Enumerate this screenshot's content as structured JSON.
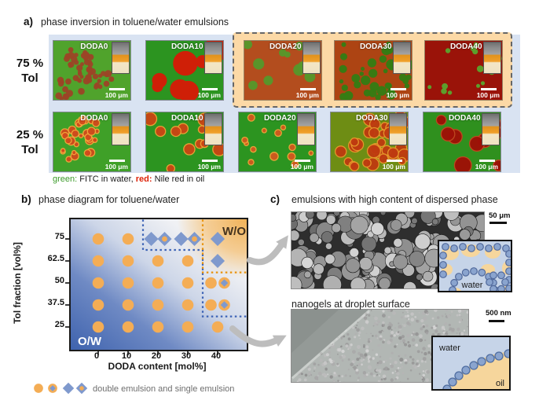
{
  "figure": {
    "panel_a": {
      "label": "a)",
      "title": "phase inversion in toluene/water emulsions",
      "rows": [
        {
          "label_percent": "75 %",
          "label_unit": "Tol"
        },
        {
          "label_percent": "25 %",
          "label_unit": "Tol"
        }
      ],
      "scale_label": "100 μm",
      "highlighted_labels": [
        "DODA20",
        "DODA30",
        "DODA40"
      ],
      "caption": {
        "green_key": "green:",
        "green_desc": " FITC in water, ",
        "red_key": "red:",
        "red_desc": " Nile red in oil"
      },
      "cells": [
        {
          "row": "75",
          "label": "DODA0",
          "boxed": false,
          "bg": "#50a32c",
          "droplets": {
            "mode": "clusters",
            "clusters": [
              [
                32,
                26
              ],
              [
                58,
                50
              ],
              [
                22,
                58
              ]
            ],
            "spread": 16,
            "count": 60,
            "rmin": 2.5,
            "rmax": 4.5,
            "color": "#9c4526",
            "opacity": 0.95,
            "seed": 1
          }
        },
        {
          "row": "75",
          "label": "DODA10",
          "boxed": false,
          "bg": "#2c9420",
          "droplets": {
            "mode": "scatter",
            "count": 7,
            "rmin": 4,
            "rmax": 19,
            "color": "#cf1f07",
            "opacity": 1,
            "seed": 2
          }
        },
        {
          "row": "75",
          "label": "DODA20",
          "boxed": true,
          "bg": "#b34d1e",
          "droplets": {
            "mode": "scatter",
            "count": 13,
            "rmin": 3.5,
            "rmax": 8.5,
            "color": "#55982b",
            "opacity": 0.95,
            "seed": 3
          }
        },
        {
          "row": "75",
          "label": "DODA30",
          "boxed": true,
          "bg": "#ad4413",
          "droplets": {
            "mode": "scatter",
            "count": 42,
            "rmin": 2.5,
            "rmax": 6.5,
            "color": "#337d13",
            "opacity": 0.95,
            "seed": 4
          }
        },
        {
          "row": "75",
          "label": "DODA40",
          "boxed": true,
          "bg": "#9a1309",
          "droplets": {
            "mode": "scatter",
            "count": 15,
            "rmin": 2,
            "rmax": 4.5,
            "color": "#5aa52e",
            "opacity": 0.95,
            "seed": 5
          }
        },
        {
          "row": "25",
          "label": "DODA0",
          "boxed": false,
          "bg": "#3fa028",
          "droplets": {
            "mode": "clusters",
            "clusters": [
              [
                40,
                24
              ],
              [
                30,
                44
              ]
            ],
            "spread": 18,
            "count": 30,
            "rmin": 2.5,
            "rmax": 5.5,
            "color": "#d2491c",
            "stroke": "#f2a93c",
            "opacity": 0.95,
            "seed": 6
          }
        },
        {
          "row": "25",
          "label": "DODA10",
          "boxed": false,
          "bg": "#2c9420",
          "droplets": {
            "mode": "scatter",
            "count": 12,
            "rmin": 4,
            "rmax": 8.5,
            "color": "#cc4414",
            "stroke": "#eea437",
            "opacity": 0.95,
            "seed": 7
          }
        },
        {
          "row": "25",
          "label": "DODA20",
          "boxed": false,
          "bg": "#2c9420",
          "droplets": {
            "mode": "scatter",
            "count": 14,
            "rmin": 2.5,
            "rmax": 6,
            "color": "#d4571e",
            "stroke": "#efa83a",
            "opacity": 0.95,
            "seed": 8
          }
        },
        {
          "row": "25",
          "label": "DODA30",
          "boxed": false,
          "bg": "#6e8d14",
          "droplets": {
            "mode": "scatter",
            "count": 32,
            "rmin": 4.5,
            "rmax": 8.5,
            "color": "#bf3a10",
            "stroke": "#e79a2c",
            "opacity": 0.95,
            "seed": 9
          }
        },
        {
          "row": "25",
          "label": "DODA40",
          "boxed": false,
          "bg": "#2f901e",
          "droplets": {
            "mode": "scatter",
            "count": 9,
            "rmin": 6,
            "rmax": 13,
            "color": "#9e1007",
            "stroke": "#bf4a20",
            "opacity": 0.97,
            "seed": 10
          }
        }
      ]
    },
    "panel_b": {
      "label": "b)",
      "title": "phase diagram for toluene/water"
    },
    "panel_c": {
      "label": "c)",
      "top": {
        "title": "emulsions with high content of dispersed phase",
        "scale": "50 μm"
      },
      "bottom": {
        "title": "nanogels at droplet surface",
        "scale": "500 nm"
      },
      "inset_top": {
        "water_label": "water"
      },
      "inset_bottom": {
        "water_label": "water",
        "oil_label": "oil"
      },
      "inset_colors": {
        "water": "#c6d4e8",
        "oil": "#f6d69c",
        "particle": "#8aa4ce",
        "particle_edge": "#51699b"
      }
    }
  },
  "chart_data": {
    "type": "scatter",
    "title": "phase diagram for toluene/water",
    "xlabel": "DODA content [mol%]",
    "ylabel": "Tol fraction [vol%]",
    "x_ticks": [
      0,
      10,
      20,
      30,
      40
    ],
    "y_ticks": [
      75,
      62.5,
      50,
      37.5,
      25
    ],
    "xlim": [
      -9,
      50
    ],
    "ylim": [
      -11,
      86
    ],
    "regions": {
      "bottom_left": "O/W",
      "top_right": "W/O"
    },
    "colors": {
      "circle": "#f4ad55",
      "diamond": "#7f99cd",
      "boundary_blue": "#3b62b5",
      "boundary_orange": "#e8920c",
      "wo_corner": "#f1b257",
      "ow_deep": "#3f63ae"
    },
    "points": [
      {
        "x": 0,
        "y": 75,
        "symbols": [
          "circle"
        ]
      },
      {
        "x": 10,
        "y": 75,
        "symbols": [
          "circle"
        ]
      },
      {
        "x": 20,
        "y": 75,
        "symbols": [
          "diamond",
          "diamond-circle"
        ]
      },
      {
        "x": 30,
        "y": 75,
        "symbols": [
          "diamond",
          "diamond-circle"
        ]
      },
      {
        "x": 40,
        "y": 75,
        "symbols": [
          "diamond"
        ]
      },
      {
        "x": 0,
        "y": 62.5,
        "symbols": [
          "circle"
        ]
      },
      {
        "x": 10,
        "y": 62.5,
        "symbols": [
          "circle"
        ]
      },
      {
        "x": 20,
        "y": 62.5,
        "symbols": [
          "circle"
        ]
      },
      {
        "x": 30,
        "y": 62.5,
        "symbols": [
          "circle"
        ]
      },
      {
        "x": 40,
        "y": 62.5,
        "symbols": [
          "diamond"
        ]
      },
      {
        "x": 0,
        "y": 50,
        "symbols": [
          "circle"
        ]
      },
      {
        "x": 10,
        "y": 50,
        "symbols": [
          "circle"
        ]
      },
      {
        "x": 20,
        "y": 50,
        "symbols": [
          "circle"
        ]
      },
      {
        "x": 30,
        "y": 50,
        "symbols": [
          "circle"
        ]
      },
      {
        "x": 40,
        "y": 50,
        "symbols": [
          "circle",
          "circle-diamond"
        ]
      },
      {
        "x": 0,
        "y": 37.5,
        "symbols": [
          "circle"
        ]
      },
      {
        "x": 10,
        "y": 37.5,
        "symbols": [
          "circle"
        ]
      },
      {
        "x": 20,
        "y": 37.5,
        "symbols": [
          "circle"
        ]
      },
      {
        "x": 30,
        "y": 37.5,
        "symbols": [
          "circle"
        ]
      },
      {
        "x": 40,
        "y": 37.5,
        "symbols": [
          "circle",
          "circle-diamond"
        ]
      },
      {
        "x": 0,
        "y": 25,
        "symbols": [
          "circle"
        ]
      },
      {
        "x": 10,
        "y": 25,
        "symbols": [
          "circle"
        ]
      },
      {
        "x": 20,
        "y": 25,
        "symbols": [
          "circle"
        ]
      },
      {
        "x": 30,
        "y": 25,
        "symbols": [
          "circle"
        ]
      },
      {
        "x": 40,
        "y": 25,
        "symbols": [
          "circle"
        ]
      }
    ],
    "boundaries": [
      {
        "color": "#3b62b5",
        "path": [
          [
            15,
            86
          ],
          [
            15,
            68.75
          ],
          [
            35,
            68.75
          ],
          [
            35,
            31
          ],
          [
            50,
            31
          ]
        ]
      },
      {
        "color": "#e8920c",
        "path": [
          [
            35,
            86
          ],
          [
            35,
            56
          ],
          [
            50,
            56
          ]
        ]
      }
    ],
    "legend": {
      "symbols": [
        "circle",
        "circle-diamond",
        "diamond",
        "diamond-circle"
      ],
      "label": "double emulsion and single emulsion"
    }
  }
}
